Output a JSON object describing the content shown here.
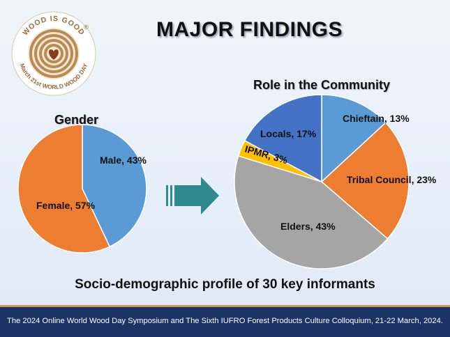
{
  "header": {
    "title": "MAJOR FINDINGS",
    "logo_text_top": "WOOD IS GOOD",
    "logo_text_bottom": "March 21st WORLD WOOD DAY",
    "logo_registered": "®"
  },
  "chart_data": [
    {
      "type": "pie",
      "title": "Gender",
      "slices": [
        {
          "label": "Male, 43%",
          "value": 43
        },
        {
          "label": "Female, 57%",
          "value": 57
        }
      ],
      "colors": [
        "#5b9bd5",
        "#ed7d31"
      ]
    },
    {
      "type": "pie",
      "title": "Role in the Community",
      "slices": [
        {
          "label": "Chieftain, 13%",
          "value": 13
        },
        {
          "label": "Tribal Council, 23%",
          "value": 23
        },
        {
          "label": "Elders, 43%",
          "value": 43
        },
        {
          "label": "IPMR, 3%",
          "value": 3
        },
        {
          "label": "Locals, 17%",
          "value": 17
        }
      ],
      "colors": [
        "#5b9bd5",
        "#ed7d31",
        "#a5a5a5",
        "#ffc000",
        "#4472c4"
      ]
    }
  ],
  "subtitle": "Socio-demographic profile of 30 key  informants",
  "footer": {
    "text": "The 2024 Online World Wood Day Symposium and The Sixth IUFRO Forest Products Culture Colloquium, 21-22 March, 2024."
  },
  "colors": {
    "arrow": "#2e8a8f",
    "footer_bg": "#1c3366",
    "footer_border": "#c8a24a",
    "logo_wood": "#b88a54"
  }
}
